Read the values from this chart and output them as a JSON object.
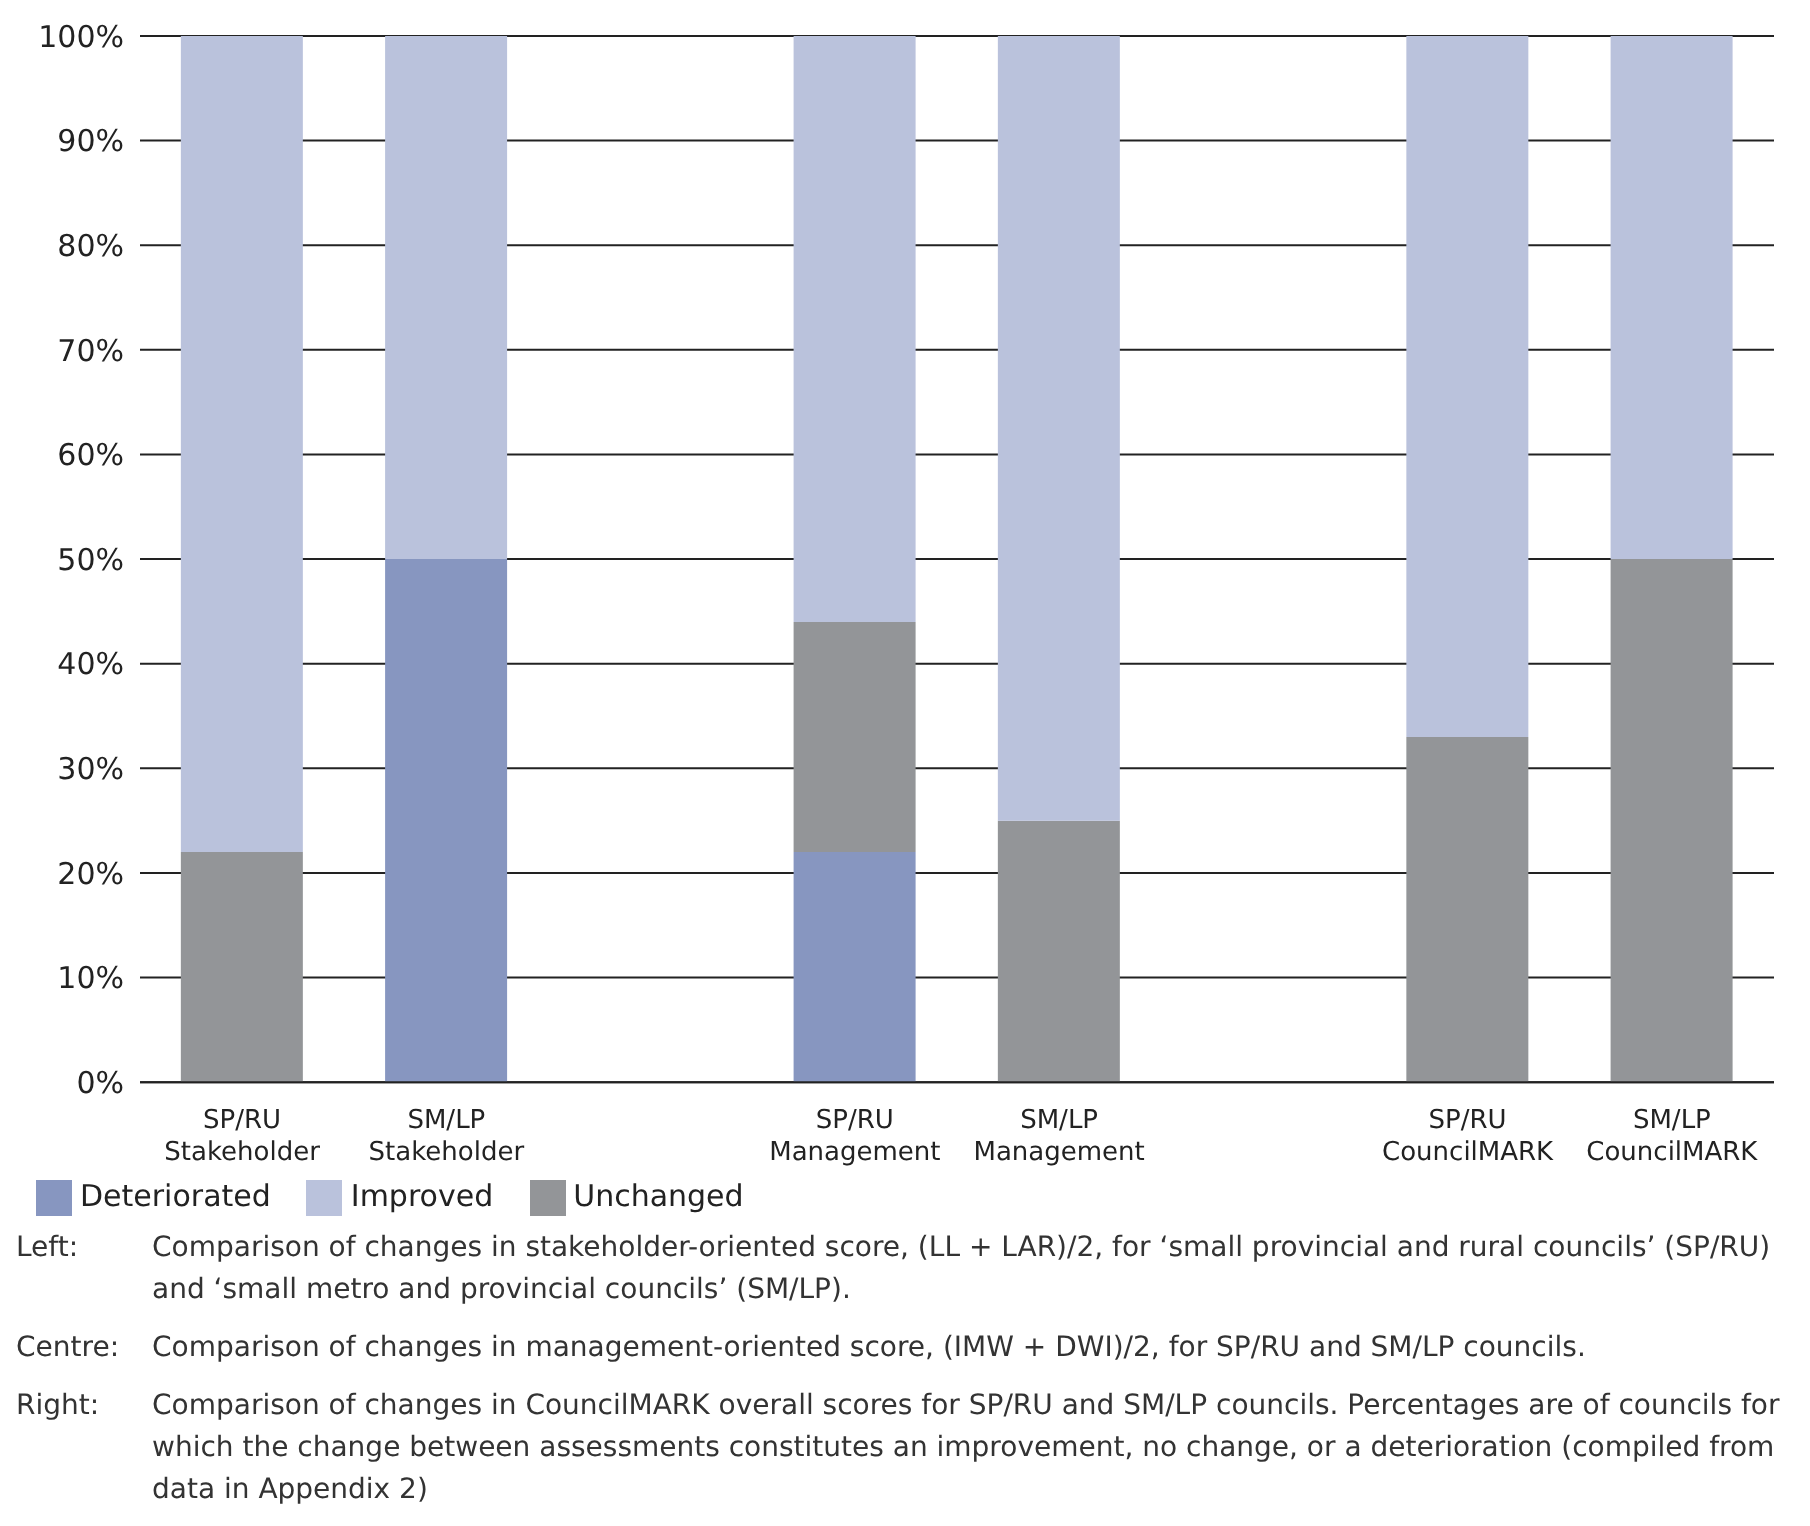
{
  "chart_data": {
    "type": "bar",
    "stacked": true,
    "categories": [
      "SP/RU\nStakeholder",
      "SM/LP\nStakeholder",
      null,
      "SP/RU\nManagement",
      "SM/LP\nManagement",
      null,
      "SP/RU\nCouncilMARK",
      "SM/LP\nCouncilMARK"
    ],
    "series": [
      {
        "name": "Deteriorated",
        "color": "#8796c0",
        "values": [
          0,
          50,
          null,
          22,
          0,
          null,
          0,
          0
        ]
      },
      {
        "name": "Unchanged",
        "color": "#939598",
        "values": [
          22,
          0,
          null,
          22,
          25,
          null,
          33,
          50
        ]
      },
      {
        "name": "Improved",
        "color": "#bac2dc",
        "values": [
          78,
          50,
          null,
          56,
          75,
          null,
          67,
          50
        ]
      }
    ],
    "ylim": [
      0,
      100
    ],
    "yticks": [
      {
        "value": 0,
        "label": "0%"
      },
      {
        "value": 10,
        "label": "10%"
      },
      {
        "value": 20,
        "label": "20%"
      },
      {
        "value": 30,
        "label": "30%"
      },
      {
        "value": 40,
        "label": "40%"
      },
      {
        "value": 50,
        "label": "50%"
      },
      {
        "value": 60,
        "label": "60%"
      },
      {
        "value": 70,
        "label": "70%"
      },
      {
        "value": 80,
        "label": "80%"
      },
      {
        "value": 90,
        "label": "90%"
      },
      {
        "value": 100,
        "label": "100%"
      }
    ],
    "grid": "y",
    "legend": "bottom left",
    "annotations": [
      "Left:\tComparison of changes in stakeholder-oriented score, (LL + LAR)/2, for ‘small provincial and rural councils’ (SP/RU) and ‘small metro and provincial councils’ (SM/LP).",
      "Centre:\tComparison of changes in management-oriented score, (IMW + DWI)/2, for SP/RU and SM/LP councils.",
      "Right:\tComparison of changes in CouncilMARK overall scores for SP/RU and SM/LP councils. Percentages are of councils for which the change between assessments constitutes an improvement, no change, or a deterioration (compiled from data in Appendix 2)"
    ]
  }
}
